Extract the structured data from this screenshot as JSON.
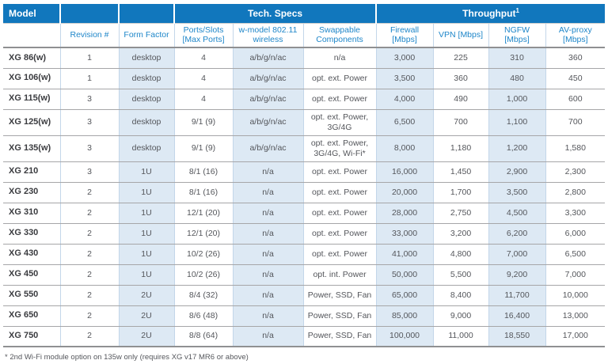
{
  "header": {
    "model": "Model",
    "tech_specs": "Tech. Specs",
    "throughput": "Throughput",
    "throughput_sup": "1",
    "sub": [
      "Revision #",
      "Form Factor",
      "Ports/Slots [Max Ports]",
      "w-model 802.11 wireless",
      "Swappable Components",
      "Firewall [Mbps]",
      "VPN [Mbps]",
      "NGFW [Mbps]",
      "AV-proxy [Mbps]"
    ]
  },
  "rows": [
    {
      "model": "XG 86(w)",
      "revision": "1",
      "form_factor": "desktop",
      "ports": "4",
      "wireless": "a/b/g/n/ac",
      "swappable": "n/a",
      "firewall": "3,000",
      "vpn": "225",
      "ngfw": "310",
      "av_proxy": "360"
    },
    {
      "model": "XG 106(w)",
      "revision": "1",
      "form_factor": "desktop",
      "ports": "4",
      "wireless": "a/b/g/n/ac",
      "swappable": "opt. ext. Power",
      "firewall": "3,500",
      "vpn": "360",
      "ngfw": "480",
      "av_proxy": "450"
    },
    {
      "model": "XG 115(w)",
      "revision": "3",
      "form_factor": "desktop",
      "ports": "4",
      "wireless": "a/b/g/n/ac",
      "swappable": "opt. ext. Power",
      "firewall": "4,000",
      "vpn": "490",
      "ngfw": "1,000",
      "av_proxy": "600"
    },
    {
      "model": "XG 125(w)",
      "revision": "3",
      "form_factor": "desktop",
      "ports": "9/1 (9)",
      "wireless": "a/b/g/n/ac",
      "swappable": "opt. ext. Power, 3G/4G",
      "firewall": "6,500",
      "vpn": "700",
      "ngfw": "1,100",
      "av_proxy": "700"
    },
    {
      "model": "XG 135(w)",
      "revision": "3",
      "form_factor": "desktop",
      "ports": "9/1 (9)",
      "wireless": "a/b/g/n/ac",
      "swappable": "opt. ext. Power, 3G/4G, Wi-Fi*",
      "firewall": "8,000",
      "vpn": "1,180",
      "ngfw": "1,200",
      "av_proxy": "1,580"
    },
    {
      "model": "XG 210",
      "revision": "3",
      "form_factor": "1U",
      "ports": "8/1 (16)",
      "wireless": "n/a",
      "swappable": "opt. ext. Power",
      "firewall": "16,000",
      "vpn": "1,450",
      "ngfw": "2,900",
      "av_proxy": "2,300"
    },
    {
      "model": "XG 230",
      "revision": "2",
      "form_factor": "1U",
      "ports": "8/1 (16)",
      "wireless": "n/a",
      "swappable": "opt. ext. Power",
      "firewall": "20,000",
      "vpn": "1,700",
      "ngfw": "3,500",
      "av_proxy": "2,800"
    },
    {
      "model": "XG 310",
      "revision": "2",
      "form_factor": "1U",
      "ports": "12/1 (20)",
      "wireless": "n/a",
      "swappable": "opt. ext. Power",
      "firewall": "28,000",
      "vpn": "2,750",
      "ngfw": "4,500",
      "av_proxy": "3,300"
    },
    {
      "model": "XG 330",
      "revision": "2",
      "form_factor": "1U",
      "ports": "12/1 (20)",
      "wireless": "n/a",
      "swappable": "opt. ext. Power",
      "firewall": "33,000",
      "vpn": "3,200",
      "ngfw": "6,200",
      "av_proxy": "6,000"
    },
    {
      "model": "XG 430",
      "revision": "2",
      "form_factor": "1U",
      "ports": "10/2 (26)",
      "wireless": "n/a",
      "swappable": "opt. ext. Power",
      "firewall": "41,000",
      "vpn": "4,800",
      "ngfw": "7,000",
      "av_proxy": "6,500"
    },
    {
      "model": "XG 450",
      "revision": "2",
      "form_factor": "1U",
      "ports": "10/2 (26)",
      "wireless": "n/a",
      "swappable": "opt. int. Power",
      "firewall": "50,000",
      "vpn": "5,500",
      "ngfw": "9,200",
      "av_proxy": "7,000"
    },
    {
      "model": "XG 550",
      "revision": "2",
      "form_factor": "2U",
      "ports": "8/4 (32)",
      "wireless": "n/a",
      "swappable": "Power, SSD, Fan",
      "firewall": "65,000",
      "vpn": "8,400",
      "ngfw": "11,700",
      "av_proxy": "10,000"
    },
    {
      "model": "XG 650",
      "revision": "2",
      "form_factor": "2U",
      "ports": "8/6 (48)",
      "wireless": "n/a",
      "swappable": "Power, SSD, Fan",
      "firewall": "85,000",
      "vpn": "9,000",
      "ngfw": "16,400",
      "av_proxy": "13,000"
    },
    {
      "model": "XG 750",
      "revision": "2",
      "form_factor": "2U",
      "ports": "8/8 (64)",
      "wireless": "n/a",
      "swappable": "Power, SSD, Fan",
      "firewall": "100,000",
      "vpn": "11,000",
      "ngfw": "18,550",
      "av_proxy": "17,000"
    }
  ],
  "footnote": "* 2nd Wi-Fi module option on 135w only (requires XG v17 MR6 or above)",
  "colors": {
    "header_bg": "#1177bd",
    "subheader_text": "#1e86c9",
    "shaded_column": "#dde9f4"
  }
}
